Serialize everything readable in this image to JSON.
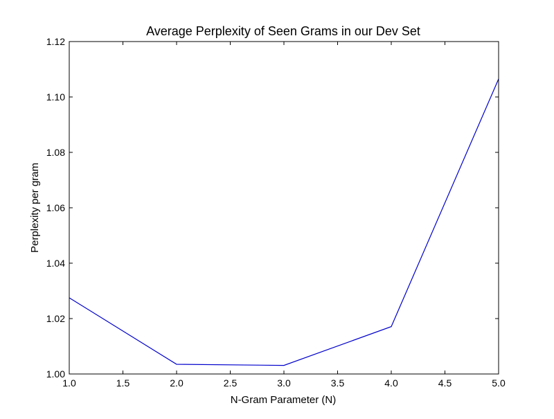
{
  "chart_data": {
    "type": "line",
    "title": "Average Perplexity of Seen Grams in our Dev Set",
    "xlabel": "N-Gram Parameter (N)",
    "ylabel": "Perplexity per gram",
    "xlim": [
      1.0,
      5.0
    ],
    "ylim": [
      1.0,
      1.12
    ],
    "x_ticks": [
      1.0,
      1.5,
      2.0,
      2.5,
      3.0,
      3.5,
      4.0,
      4.5,
      5.0
    ],
    "x_tick_labels": [
      "1.0",
      "1.5",
      "2.0",
      "2.5",
      "3.0",
      "3.5",
      "4.0",
      "4.5",
      "5.0"
    ],
    "y_ticks": [
      1.0,
      1.02,
      1.04,
      1.06,
      1.08,
      1.1,
      1.12
    ],
    "y_tick_labels": [
      "1.00",
      "1.02",
      "1.04",
      "1.06",
      "1.08",
      "1.10",
      "1.12"
    ],
    "grid": false,
    "series": [
      {
        "color": "#0000cc",
        "x": [
          1,
          2,
          3,
          4,
          5
        ],
        "y": [
          1.0275,
          1.0035,
          1.0031,
          1.0171,
          1.1065
        ]
      }
    ]
  }
}
